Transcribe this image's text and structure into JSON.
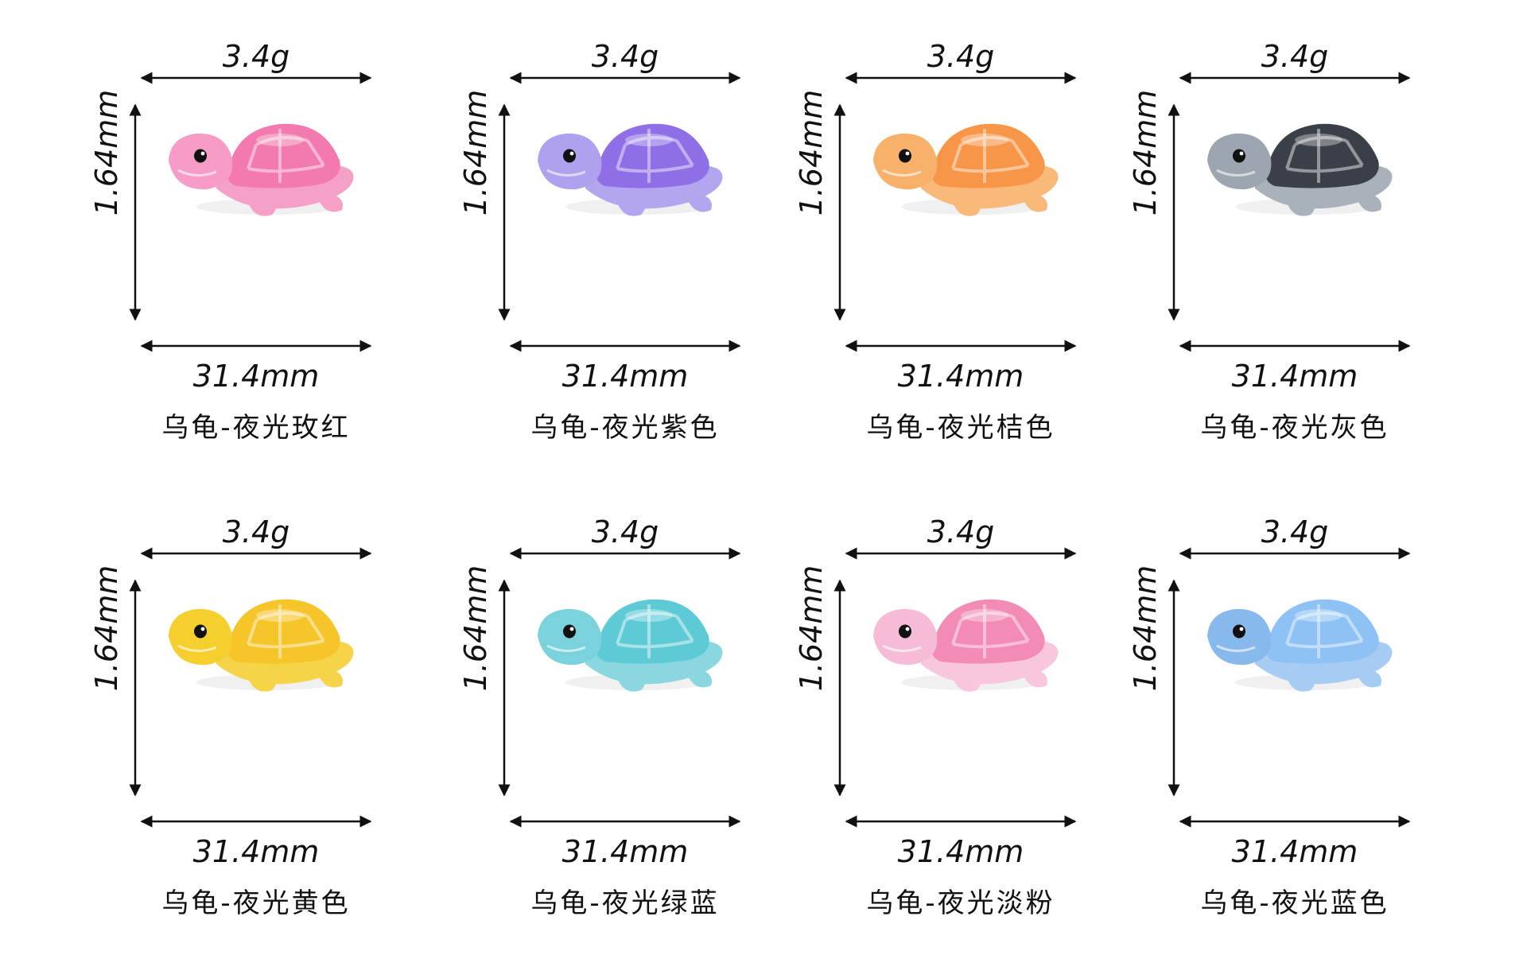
{
  "products": [
    {
      "weight": "3.4g",
      "height": "1.64mm",
      "width": "31.4mm",
      "name": "乌龟-夜光玫红",
      "body_color": "#f5a0c6",
      "shell_color": "#f27aae",
      "head_color": "#f69cc7"
    },
    {
      "weight": "3.4g",
      "height": "1.64mm",
      "width": "31.4mm",
      "name": "乌龟-夜光紫色",
      "body_color": "#b3a5f0",
      "shell_color": "#8f6fe6",
      "head_color": "#b0a1ee"
    },
    {
      "weight": "3.4g",
      "height": "1.64mm",
      "width": "31.4mm",
      "name": "乌龟-夜光桔色",
      "body_color": "#f9b978",
      "shell_color": "#f79648",
      "head_color": "#f8b16b"
    },
    {
      "weight": "3.4g",
      "height": "1.64mm",
      "width": "31.4mm",
      "name": "乌龟-夜光灰色",
      "body_color": "#a9b1bb",
      "shell_color": "#3b4048",
      "head_color": "#9ca5b0"
    },
    {
      "weight": "3.4g",
      "height": "1.64mm",
      "width": "31.4mm",
      "name": "乌龟-夜光黄色",
      "body_color": "#f6d44a",
      "shell_color": "#f5c52a",
      "head_color": "#f4cf2e"
    },
    {
      "weight": "3.4g",
      "height": "1.64mm",
      "width": "31.4mm",
      "name": "乌龟-夜光绿蓝",
      "body_color": "#8ad7df",
      "shell_color": "#5ecad6",
      "head_color": "#79d2dc"
    },
    {
      "weight": "3.4g",
      "height": "1.64mm",
      "width": "31.4mm",
      "name": "乌龟-夜光淡粉",
      "body_color": "#f8c6dd",
      "shell_color": "#f28bb5",
      "head_color": "#f6bcd7"
    },
    {
      "weight": "3.4g",
      "height": "1.64mm",
      "width": "31.4mm",
      "name": "乌龟-夜光蓝色",
      "body_color": "#a7ccf3",
      "shell_color": "#8ec2f4",
      "head_color": "#88b9ec"
    }
  ]
}
